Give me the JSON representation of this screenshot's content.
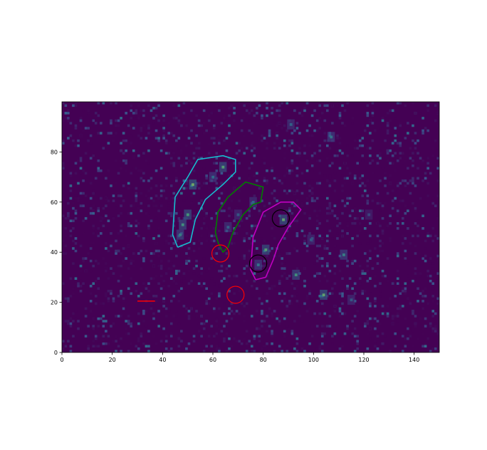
{
  "chart_data": {
    "type": "heatmap",
    "colormap": "viridis",
    "background_color": "#440154",
    "xlim": [
      0,
      150
    ],
    "ylim": [
      0,
      100
    ],
    "xticks": [
      0,
      20,
      40,
      60,
      80,
      100,
      120,
      140
    ],
    "yticks": [
      0,
      20,
      40,
      60,
      80
    ],
    "hotspots": [
      {
        "x": 52,
        "y": 67,
        "v": 0.9
      },
      {
        "x": 50,
        "y": 55,
        "v": 0.75
      },
      {
        "x": 48,
        "y": 51,
        "v": 0.7
      },
      {
        "x": 64,
        "y": 74,
        "v": 0.8
      },
      {
        "x": 60,
        "y": 70,
        "v": 0.5
      },
      {
        "x": 47,
        "y": 47,
        "v": 0.6
      },
      {
        "x": 76,
        "y": 60,
        "v": 0.45
      },
      {
        "x": 70,
        "y": 55,
        "v": 0.4
      },
      {
        "x": 66,
        "y": 50,
        "v": 0.45
      },
      {
        "x": 88,
        "y": 53,
        "v": 0.85
      },
      {
        "x": 81,
        "y": 41,
        "v": 0.8
      },
      {
        "x": 78,
        "y": 35,
        "v": 0.55
      },
      {
        "x": 93,
        "y": 31,
        "v": 0.7
      },
      {
        "x": 104,
        "y": 23,
        "v": 0.85
      },
      {
        "x": 112,
        "y": 39,
        "v": 0.6
      },
      {
        "x": 99,
        "y": 45,
        "v": 0.4
      },
      {
        "x": 107,
        "y": 86,
        "v": 0.55
      },
      {
        "x": 91,
        "y": 91,
        "v": 0.45
      },
      {
        "x": 115,
        "y": 21,
        "v": 0.4
      },
      {
        "x": 122,
        "y": 55,
        "v": 0.3
      }
    ],
    "polygons": [
      {
        "color": "#17becf",
        "points": [
          [
            46,
            42
          ],
          [
            44,
            47
          ],
          [
            45,
            62
          ],
          [
            50,
            70
          ],
          [
            54,
            77
          ],
          [
            64,
            78.5
          ],
          [
            69,
            77
          ],
          [
            69,
            72
          ],
          [
            64,
            67
          ],
          [
            57,
            61
          ],
          [
            53,
            53
          ],
          [
            51,
            44
          ],
          [
            46,
            42
          ]
        ]
      },
      {
        "color": "#008000",
        "points": [
          [
            62,
            44
          ],
          [
            61,
            48
          ],
          [
            62,
            56
          ],
          [
            66,
            62
          ],
          [
            73,
            68
          ],
          [
            80,
            66
          ],
          [
            79,
            60
          ],
          [
            76,
            59
          ],
          [
            72,
            55
          ],
          [
            68,
            48
          ],
          [
            66,
            42
          ],
          [
            64,
            40
          ],
          [
            62,
            44
          ]
        ]
      },
      {
        "color": "#c000c0",
        "points": [
          [
            77,
            29
          ],
          [
            75,
            33
          ],
          [
            76,
            46
          ],
          [
            80,
            56
          ],
          [
            87,
            60
          ],
          [
            92,
            60
          ],
          [
            95,
            57
          ],
          [
            90,
            50
          ],
          [
            86,
            43
          ],
          [
            84,
            37
          ],
          [
            81,
            30
          ],
          [
            77,
            29
          ]
        ]
      }
    ],
    "circles": [
      {
        "color": "#ff0000",
        "x": 63,
        "y": 39.5,
        "r": 3.4
      },
      {
        "color": "#ff0000",
        "x": 69,
        "y": 23,
        "r": 3.4
      },
      {
        "color": "#000000",
        "x": 87,
        "y": 53.5,
        "r": 3.4
      },
      {
        "color": "#000000",
        "x": 78,
        "y": 35.5,
        "r": 3.4
      }
    ],
    "segments": [
      {
        "color": "#ff0000",
        "x": [
          30,
          37
        ],
        "y": [
          20.5,
          20.5
        ]
      }
    ]
  }
}
